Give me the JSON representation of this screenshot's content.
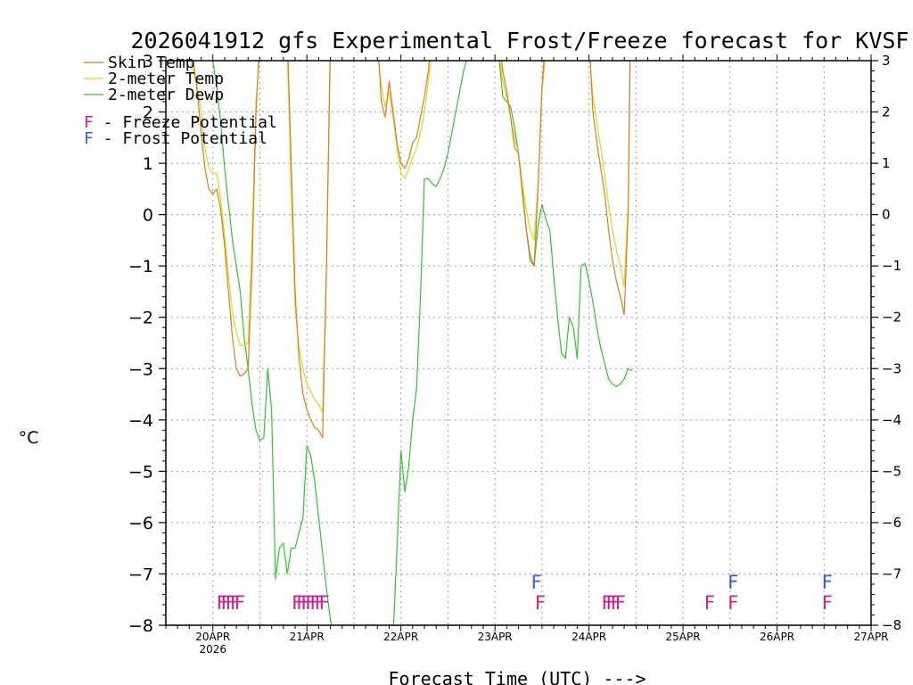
{
  "chart_data": {
    "type": "line",
    "title": "2026041912 gfs Experimental Frost/Freeze forecast for KVSF",
    "xlabel": "Forecast Time (UTC) --->",
    "ylabel": "°C",
    "ylim": [
      -8,
      3
    ],
    "xlim": [
      -6,
      174
    ],
    "yticks": [
      -8,
      -7,
      -6,
      -5,
      -4,
      -3,
      -2,
      -1,
      0,
      1,
      2,
      3
    ],
    "ytick_labels": [
      "−8",
      "−7",
      "−6",
      "−5",
      "−4",
      "−3",
      "−2",
      "−1",
      "0",
      "1",
      "2",
      "3"
    ],
    "xticks": [
      {
        "h": 6,
        "label": "20APR",
        "sub": "2026"
      },
      {
        "h": 30,
        "label": "21APR"
      },
      {
        "h": 54,
        "label": "22APR"
      },
      {
        "h": 78,
        "label": "23APR"
      },
      {
        "h": 102,
        "label": "24APR"
      },
      {
        "h": 126,
        "label": "25APR"
      },
      {
        "h": 150,
        "label": "26APR"
      },
      {
        "h": 174,
        "label": "27APR"
      }
    ],
    "grid": true,
    "legend": {
      "position": "top-left",
      "entries": [
        {
          "label": "Skin Temp",
          "color": "#e07b1f"
        },
        {
          "label": "2-meter Temp",
          "color": "#e8d020"
        },
        {
          "label": "2-meter Dewp",
          "color": "#2ec52e"
        }
      ],
      "flag_entries": [
        {
          "glyph": "F",
          "label": " - Freeze Potential",
          "color": "#d02090"
        },
        {
          "glyph": "F",
          "label": " - Frost Potential",
          "color": "#3a5bd8"
        }
      ]
    },
    "series": [
      {
        "name": "Skin Temp",
        "color": "#e07b1f",
        "points": [
          [
            0,
            3.2
          ],
          [
            1,
            3.0
          ],
          [
            2,
            2.4
          ],
          [
            3,
            1.6
          ],
          [
            4,
            0.9
          ],
          [
            5,
            0.5
          ],
          [
            6,
            0.4
          ],
          [
            7,
            0.5
          ],
          [
            8,
            0.1
          ],
          [
            9,
            -0.6
          ],
          [
            10,
            -1.5
          ],
          [
            11,
            -2.4
          ],
          [
            12,
            -3.0
          ],
          [
            13,
            -3.15
          ],
          [
            14,
            -3.1
          ],
          [
            15,
            -3.0
          ],
          [
            16,
            -1.0
          ],
          [
            17,
            2.0
          ],
          [
            18,
            3.5
          ],
          [
            25,
            3.5
          ],
          [
            26,
            1.0
          ],
          [
            27,
            -1.5
          ],
          [
            28,
            -2.8
          ],
          [
            29,
            -3.5
          ],
          [
            30,
            -3.8
          ],
          [
            31,
            -4.0
          ],
          [
            32,
            -4.15
          ],
          [
            33,
            -4.2
          ],
          [
            34,
            -4.35
          ],
          [
            35,
            -1.0
          ],
          [
            36,
            3.5
          ],
          [
            48,
            3.5
          ],
          [
            49,
            2.2
          ],
          [
            50,
            1.9
          ],
          [
            51,
            2.6
          ],
          [
            52,
            2.0
          ],
          [
            53,
            1.4
          ],
          [
            54,
            1.0
          ],
          [
            55,
            0.9
          ],
          [
            56,
            1.1
          ],
          [
            57,
            1.4
          ],
          [
            58,
            1.5
          ],
          [
            59,
            1.9
          ],
          [
            60,
            2.3
          ],
          [
            61,
            2.8
          ],
          [
            62,
            3.5
          ],
          [
            79,
            3.5
          ],
          [
            80,
            2.8
          ],
          [
            81,
            2.4
          ],
          [
            82,
            1.9
          ],
          [
            83,
            1.3
          ],
          [
            84,
            1.2
          ],
          [
            85,
            0.4
          ],
          [
            86,
            -0.3
          ],
          [
            87,
            -0.8
          ],
          [
            88,
            -1.0
          ],
          [
            89,
            0.5
          ],
          [
            90,
            2.5
          ],
          [
            91,
            3.5
          ],
          [
            102,
            3.5
          ],
          [
            103,
            2.0
          ],
          [
            104,
            1.4
          ],
          [
            105,
            0.9
          ],
          [
            106,
            0.4
          ],
          [
            107,
            -0.3
          ],
          [
            108,
            -0.9
          ],
          [
            109,
            -1.3
          ],
          [
            110,
            -1.6
          ],
          [
            111,
            -1.95
          ],
          [
            112,
            0.0
          ],
          [
            112.5,
            3.2
          ]
        ]
      },
      {
        "name": "2-meter Temp",
        "color": "#e8d020",
        "points": [
          [
            0,
            3.1
          ],
          [
            1,
            2.8
          ],
          [
            2,
            2.5
          ],
          [
            3,
            2.0
          ],
          [
            4,
            1.3
          ],
          [
            5,
            0.9
          ],
          [
            6,
            0.8
          ],
          [
            7,
            0.8
          ],
          [
            8,
            0.3
          ],
          [
            9,
            -0.4
          ],
          [
            10,
            -1.2
          ],
          [
            11,
            -1.9
          ],
          [
            12,
            -2.3
          ],
          [
            13,
            -2.55
          ],
          [
            14,
            -2.55
          ],
          [
            15,
            -2.5
          ],
          [
            16,
            -0.5
          ],
          [
            17,
            2.2
          ],
          [
            18,
            3.2
          ],
          [
            25,
            3.2
          ],
          [
            26,
            0.5
          ],
          [
            27,
            -1.8
          ],
          [
            28,
            -2.6
          ],
          [
            29,
            -3.0
          ],
          [
            30,
            -3.3
          ],
          [
            31,
            -3.45
          ],
          [
            32,
            -3.6
          ],
          [
            33,
            -3.7
          ],
          [
            34,
            -3.85
          ],
          [
            35,
            -1.0
          ],
          [
            36,
            3.2
          ],
          [
            48,
            3.2
          ],
          [
            49,
            2.5
          ],
          [
            50,
            2.1
          ],
          [
            51,
            2.4
          ],
          [
            52,
            1.9
          ],
          [
            53,
            1.3
          ],
          [
            54,
            0.8
          ],
          [
            55,
            0.7
          ],
          [
            56,
            0.9
          ],
          [
            57,
            1.1
          ],
          [
            58,
            1.3
          ],
          [
            59,
            1.6
          ],
          [
            60,
            2.0
          ],
          [
            61,
            2.6
          ],
          [
            62,
            3.2
          ],
          [
            79,
            3.2
          ],
          [
            80,
            2.6
          ],
          [
            81,
            2.3
          ],
          [
            82,
            1.9
          ],
          [
            83,
            1.5
          ],
          [
            84,
            1.2
          ],
          [
            85,
            0.6
          ],
          [
            86,
            0.1
          ],
          [
            87,
            -0.3
          ],
          [
            88,
            -0.5
          ],
          [
            89,
            0.6
          ],
          [
            90,
            2.4
          ],
          [
            91,
            3.2
          ],
          [
            102,
            3.2
          ],
          [
            103,
            2.3
          ],
          [
            104,
            1.8
          ],
          [
            105,
            1.3
          ],
          [
            106,
            0.8
          ],
          [
            107,
            0.2
          ],
          [
            108,
            -0.3
          ],
          [
            109,
            -0.7
          ],
          [
            110,
            -1.0
          ],
          [
            111,
            -1.4
          ],
          [
            112,
            0.2
          ],
          [
            112.5,
            3.1
          ]
        ]
      },
      {
        "name": "2-meter Dewp",
        "color": "#2ec52e",
        "points": [
          [
            6,
            3.0
          ],
          [
            7,
            2.5
          ],
          [
            8,
            1.8
          ],
          [
            9,
            0.9
          ],
          [
            10,
            0.2
          ],
          [
            11,
            -0.5
          ],
          [
            12,
            -1.0
          ],
          [
            13,
            -1.5
          ],
          [
            14,
            -2.4
          ],
          [
            15,
            -3.0
          ],
          [
            16,
            -3.7
          ],
          [
            17,
            -4.2
          ],
          [
            18,
            -4.4
          ],
          [
            19,
            -4.35
          ],
          [
            20,
            -3.0
          ],
          [
            21,
            -3.8
          ],
          [
            22,
            -7.1
          ],
          [
            23,
            -6.5
          ],
          [
            24,
            -6.4
          ],
          [
            25,
            -7.0
          ],
          [
            26,
            -6.5
          ],
          [
            27,
            -6.5
          ],
          [
            28,
            -6.2
          ],
          [
            29,
            -5.9
          ],
          [
            30,
            -4.5
          ],
          [
            31,
            -4.7
          ],
          [
            32,
            -5.2
          ],
          [
            33,
            -5.9
          ],
          [
            34,
            -6.6
          ],
          [
            35,
            -7.3
          ],
          [
            36,
            -7.9
          ],
          [
            37,
            -8.3
          ],
          [
            52,
            -8.2
          ],
          [
            53,
            -6.5
          ],
          [
            54,
            -4.6
          ],
          [
            55,
            -5.4
          ],
          [
            56,
            -4.9
          ],
          [
            57,
            -4.0
          ],
          [
            58,
            -3.4
          ],
          [
            59,
            -1.6
          ],
          [
            60,
            0.7
          ],
          [
            61,
            0.7
          ],
          [
            62,
            0.6
          ],
          [
            63,
            0.55
          ],
          [
            64,
            0.7
          ],
          [
            65,
            0.9
          ],
          [
            66,
            1.2
          ],
          [
            67,
            1.6
          ],
          [
            68,
            2.0
          ],
          [
            69,
            2.4
          ],
          [
            70,
            2.8
          ],
          [
            71,
            3.1
          ],
          [
            79,
            3.1
          ],
          [
            80,
            2.3
          ],
          [
            81,
            2.2
          ],
          [
            82,
            2.1
          ],
          [
            83,
            1.7
          ],
          [
            84,
            1.2
          ],
          [
            85,
            0.5
          ],
          [
            86,
            -0.3
          ],
          [
            87,
            -0.9
          ],
          [
            88,
            -1.0
          ],
          [
            89,
            -0.2
          ],
          [
            90,
            0.2
          ],
          [
            91,
            -0.1
          ],
          [
            92,
            -0.3
          ],
          [
            93,
            -1.2
          ],
          [
            94,
            -2.0
          ],
          [
            95,
            -2.7
          ],
          [
            96,
            -2.8
          ],
          [
            97,
            -2.0
          ],
          [
            98,
            -2.2
          ],
          [
            99,
            -2.8
          ],
          [
            100,
            -1.0
          ],
          [
            101,
            -0.95
          ],
          [
            102,
            -1.3
          ],
          [
            103,
            -1.7
          ],
          [
            104,
            -2.2
          ],
          [
            105,
            -2.6
          ],
          [
            106,
            -2.9
          ],
          [
            107,
            -3.2
          ],
          [
            108,
            -3.3
          ],
          [
            109,
            -3.35
          ],
          [
            110,
            -3.3
          ],
          [
            111,
            -3.2
          ],
          [
            112,
            -3.0
          ],
          [
            113,
            -3.05
          ]
        ]
      }
    ],
    "freeze_potential": {
      "color": "#d02090",
      "y": -7.55,
      "marks": [
        {
          "h": 9.8,
          "text": "FFFFF"
        },
        {
          "h": 30.2,
          "text": "FFFFFFF"
        },
        {
          "h": 107.5,
          "text": "FFFF"
        },
        {
          "h": 132.0,
          "text": "F"
        },
        {
          "h": 138.0,
          "text": "F"
        },
        {
          "h": 162.0,
          "text": "F"
        },
        {
          "h": 88.8,
          "text": "F"
        }
      ]
    },
    "frost_potential": {
      "color": "#3a5bd8",
      "y": -7.15,
      "marks": [
        {
          "h": 87.8,
          "text": "F"
        },
        {
          "h": 138.0,
          "text": "F"
        },
        {
          "h": 162.0,
          "text": "F"
        }
      ]
    }
  }
}
